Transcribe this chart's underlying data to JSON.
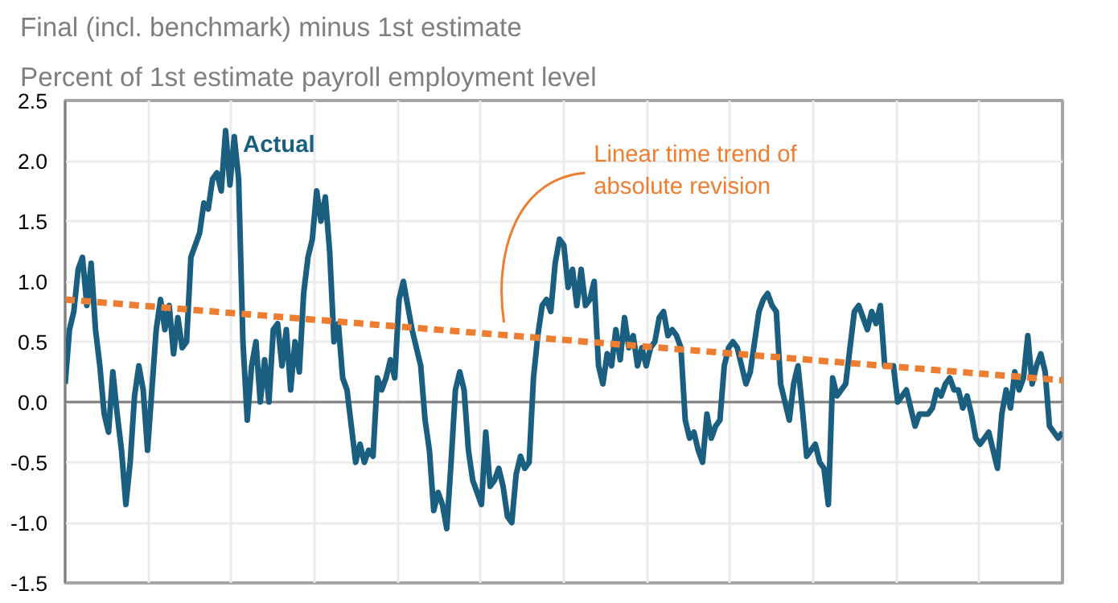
{
  "chart_data": {
    "type": "line",
    "title": "Final (incl. benchmark) minus 1st estimate",
    "subtitle": "Percent of 1st estimate payroll employment level",
    "categories": [
      null,
      null,
      null,
      null,
      null,
      null,
      null,
      null,
      null,
      null,
      null,
      null,
      null,
      null,
      null,
      null,
      null,
      null,
      null,
      null,
      null,
      null,
      null,
      null,
      null,
      null,
      null,
      null,
      null,
      null,
      null,
      null,
      null,
      null,
      null,
      null,
      null,
      null,
      null,
      null,
      null,
      null,
      null,
      null,
      null,
      null,
      null,
      null,
      null,
      null,
      null,
      null,
      null,
      null,
      null,
      null,
      null,
      null,
      null,
      null,
      null,
      null,
      null,
      null,
      null,
      null,
      null,
      null,
      null,
      null,
      null,
      null,
      null,
      null,
      null,
      null,
      null,
      null,
      null,
      null,
      null,
      null,
      null,
      null,
      null,
      null,
      null,
      null,
      null,
      null,
      null,
      null,
      null,
      null,
      null,
      null,
      null,
      null,
      null,
      null,
      null,
      null,
      null,
      null,
      null,
      null,
      null,
      null,
      null,
      null,
      null,
      null,
      null,
      null,
      null,
      null,
      null,
      null,
      null,
      null,
      null,
      null,
      null,
      null,
      null,
      null,
      null,
      null,
      null,
      null,
      null,
      null,
      null,
      null,
      null,
      null,
      null,
      null,
      null,
      null,
      null,
      null,
      null,
      null,
      null,
      null,
      null,
      null,
      null,
      null,
      null,
      null,
      null,
      null,
      null,
      null,
      null,
      null,
      null,
      null,
      null,
      null,
      null,
      null,
      null,
      null,
      null,
      null,
      null,
      null,
      null,
      null,
      null,
      null,
      null,
      null,
      null,
      null,
      null,
      null,
      null,
      null,
      null,
      null,
      null,
      null,
      null,
      null,
      null,
      null,
      null,
      null,
      null,
      null,
      null,
      null,
      null,
      null,
      null,
      null,
      null,
      null,
      null,
      null,
      null,
      null,
      null,
      null,
      null,
      null,
      null,
      null,
      null,
      null,
      null,
      null,
      null,
      null,
      null,
      null,
      null,
      null,
      null,
      null,
      null,
      null,
      null,
      null,
      null,
      null,
      null
    ],
    "ylim": [
      -1.5,
      2.5
    ],
    "yticks": [
      {
        "value": -1.5,
        "label": "-1.5"
      },
      {
        "value": -1.0,
        "label": "-1.0"
      },
      {
        "value": -0.5,
        "label": "-0.5"
      },
      {
        "value": 0,
        "label": "0.0"
      },
      {
        "value": 0.5,
        "label": "0.5"
      },
      {
        "value": 1.0,
        "label": "1.0"
      },
      {
        "value": 1.5,
        "label": "1.5"
      },
      {
        "value": 2.0,
        "label": "2.0"
      },
      {
        "value": 2.5,
        "label": "2.5"
      }
    ],
    "grid": true,
    "legend": false,
    "marker": "none",
    "series": [
      {
        "name": "Actual",
        "color": "#1a5e80",
        "line_style": "solid",
        "values": [
          0.15,
          0.6,
          0.75,
          1.1,
          1.2,
          0.8,
          1.15,
          0.6,
          0.3,
          -0.1,
          -0.25,
          0.25,
          -0.1,
          -0.4,
          -0.85,
          -0.5,
          0.05,
          0.3,
          0.1,
          -0.4,
          0.1,
          0.6,
          0.85,
          0.6,
          0.8,
          0.4,
          0.7,
          0.45,
          0.5,
          1.2,
          1.3,
          1.4,
          1.65,
          1.6,
          1.85,
          1.9,
          1.75,
          2.25,
          1.8,
          2.2,
          1.85,
          0.5,
          -0.15,
          0.3,
          0.5,
          0.0,
          0.35,
          0.0,
          0.6,
          0.65,
          0.3,
          0.6,
          0.1,
          0.5,
          0.25,
          0.9,
          1.2,
          1.35,
          1.75,
          1.5,
          1.7,
          1.25,
          0.5,
          0.65,
          0.2,
          0.1,
          -0.2,
          -0.5,
          -0.35,
          -0.5,
          -0.4,
          -0.45,
          0.2,
          0.1,
          0.2,
          0.35,
          0.2,
          0.85,
          1.0,
          0.8,
          0.6,
          0.45,
          0.3,
          -0.15,
          -0.4,
          -0.9,
          -0.75,
          -0.85,
          -1.05,
          -0.5,
          0.1,
          0.25,
          0.1,
          -0.4,
          -0.65,
          -0.75,
          -0.85,
          -0.25,
          -0.7,
          -0.65,
          -0.55,
          -0.7,
          -0.95,
          -1.0,
          -0.6,
          -0.45,
          -0.55,
          -0.5,
          0.2,
          0.55,
          0.8,
          0.85,
          0.75,
          1.15,
          1.35,
          1.3,
          0.95,
          1.1,
          0.8,
          1.1,
          0.8,
          0.85,
          1.0,
          0.3,
          0.15,
          0.4,
          0.3,
          0.6,
          0.35,
          0.7,
          0.45,
          0.55,
          0.3,
          0.45,
          0.3,
          0.45,
          0.5,
          0.7,
          0.75,
          0.55,
          0.6,
          0.55,
          0.45,
          -0.15,
          -0.3,
          -0.25,
          -0.4,
          -0.5,
          -0.1,
          -0.3,
          -0.2,
          -0.15,
          0.3,
          0.45,
          0.5,
          0.45,
          0.3,
          0.15,
          0.25,
          0.5,
          0.75,
          0.85,
          0.9,
          0.8,
          0.75,
          0.15,
          0.0,
          -0.15,
          0.15,
          0.3,
          -0.05,
          -0.45,
          -0.4,
          -0.35,
          -0.5,
          -0.55,
          -0.85,
          0.2,
          0.05,
          0.1,
          0.15,
          0.45,
          0.75,
          0.8,
          0.7,
          0.6,
          0.75,
          0.65,
          0.8,
          0.3,
          0.3,
          0.3,
          0.0,
          0.05,
          0.1,
          -0.05,
          -0.2,
          -0.1,
          -0.1,
          -0.1,
          -0.05,
          0.1,
          0.05,
          0.15,
          0.2,
          0.1,
          0.1,
          -0.05,
          0.05,
          -0.1,
          -0.3,
          -0.35,
          -0.3,
          -0.25,
          -0.4,
          -0.55,
          -0.1,
          0.1,
          -0.05,
          0.25,
          0.1,
          0.2,
          0.55,
          0.15,
          0.3,
          0.4,
          0.25,
          -0.2,
          -0.25,
          -0.3,
          -0.25
        ]
      },
      {
        "name": "Linear time trend of absolute revision",
        "color": "#ed7d31",
        "line_style": "dashed",
        "values": [
          0.85,
          null,
          null,
          null,
          null,
          null,
          null,
          null,
          null,
          null,
          null,
          null,
          null,
          null,
          null,
          null,
          null,
          null,
          null,
          null,
          null,
          null,
          null,
          null,
          null,
          null,
          null,
          null,
          null,
          null,
          null,
          null,
          null,
          null,
          null,
          null,
          null,
          null,
          null,
          null,
          null,
          null,
          null,
          null,
          null,
          null,
          null,
          null,
          null,
          null,
          null,
          null,
          null,
          null,
          null,
          null,
          null,
          null,
          null,
          null,
          null,
          null,
          null,
          null,
          null,
          null,
          null,
          null,
          null,
          null,
          null,
          null,
          null,
          null,
          null,
          null,
          null,
          null,
          null,
          null,
          null,
          null,
          null,
          null,
          null,
          null,
          null,
          null,
          null,
          null,
          null,
          null,
          null,
          null,
          null,
          null,
          null,
          null,
          null,
          null,
          null,
          null,
          null,
          null,
          null,
          null,
          null,
          null,
          null,
          null,
          null,
          null,
          null,
          null,
          null,
          null,
          null,
          null,
          null,
          null,
          null,
          null,
          null,
          null,
          null,
          null,
          null,
          null,
          null,
          null,
          null,
          null,
          null,
          null,
          null,
          null,
          null,
          null,
          null,
          null,
          null,
          null,
          null,
          null,
          null,
          null,
          null,
          null,
          null,
          null,
          null,
          null,
          null,
          null,
          null,
          null,
          null,
          null,
          null,
          null,
          null,
          null,
          null,
          null,
          null,
          null,
          null,
          null,
          null,
          null,
          null,
          null,
          null,
          null,
          null,
          null,
          null,
          null,
          null,
          null,
          null,
          null,
          null,
          null,
          null,
          null,
          null,
          null,
          null,
          null,
          null,
          null,
          null,
          null,
          null,
          null,
          null,
          null,
          null,
          null,
          null,
          null,
          null,
          null,
          null,
          null,
          null,
          null,
          null,
          null,
          null,
          null,
          null,
          null,
          null,
          null,
          null,
          null,
          null,
          null,
          null,
          null,
          null,
          null,
          null,
          null,
          null,
          null,
          null,
          null,
          0.18
        ]
      }
    ]
  }
}
